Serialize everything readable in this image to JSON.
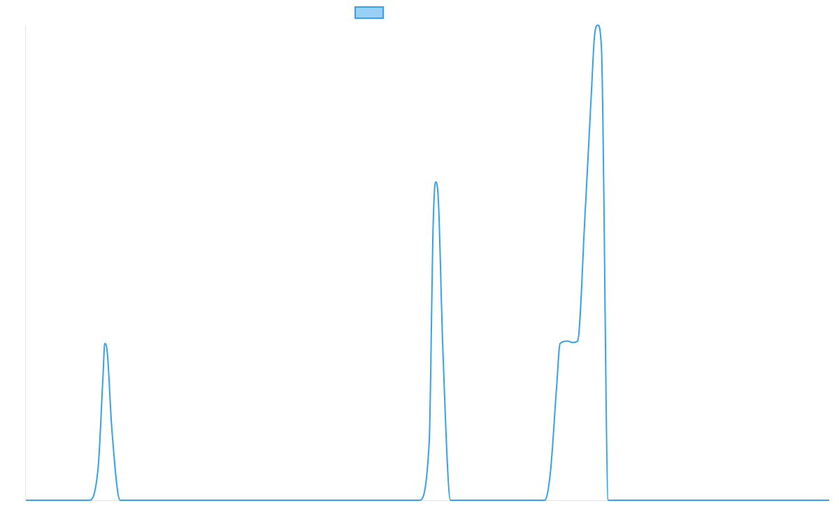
{
  "chart_data": {
    "type": "line",
    "title": "",
    "xlabel": "",
    "ylabel": "",
    "xlim": [
      0,
      100
    ],
    "ylim": [
      0,
      100
    ],
    "grid": false,
    "legend": {
      "position": "top",
      "entries": [
        {
          "name": "",
          "color": "#36a2eb"
        }
      ]
    },
    "series": [
      {
        "name": "",
        "color": "#36a2eb",
        "fill_color": "#9ad0f5",
        "x": [
          0,
          7.82,
          9.0,
          9.57,
          9.83,
          10.14,
          10.7,
          11.74,
          48.96,
          50.2,
          50.7,
          51.0,
          51.35,
          51.9,
          52.87,
          64.59,
          65.3,
          66.07,
          66.5,
          67.5,
          68.0,
          68.68,
          69.6,
          70.4,
          70.8,
          71.2,
          71.65,
          72.5,
          100
        ],
        "y": [
          0,
          0,
          7,
          25,
          33,
          31,
          15,
          0,
          0,
          12,
          58,
          67,
          63,
          32,
          0,
          0,
          6,
          24,
          33,
          33.5,
          33.2,
          33.5,
          60,
          86,
          98,
          100,
          95,
          0,
          0
        ]
      }
    ]
  }
}
